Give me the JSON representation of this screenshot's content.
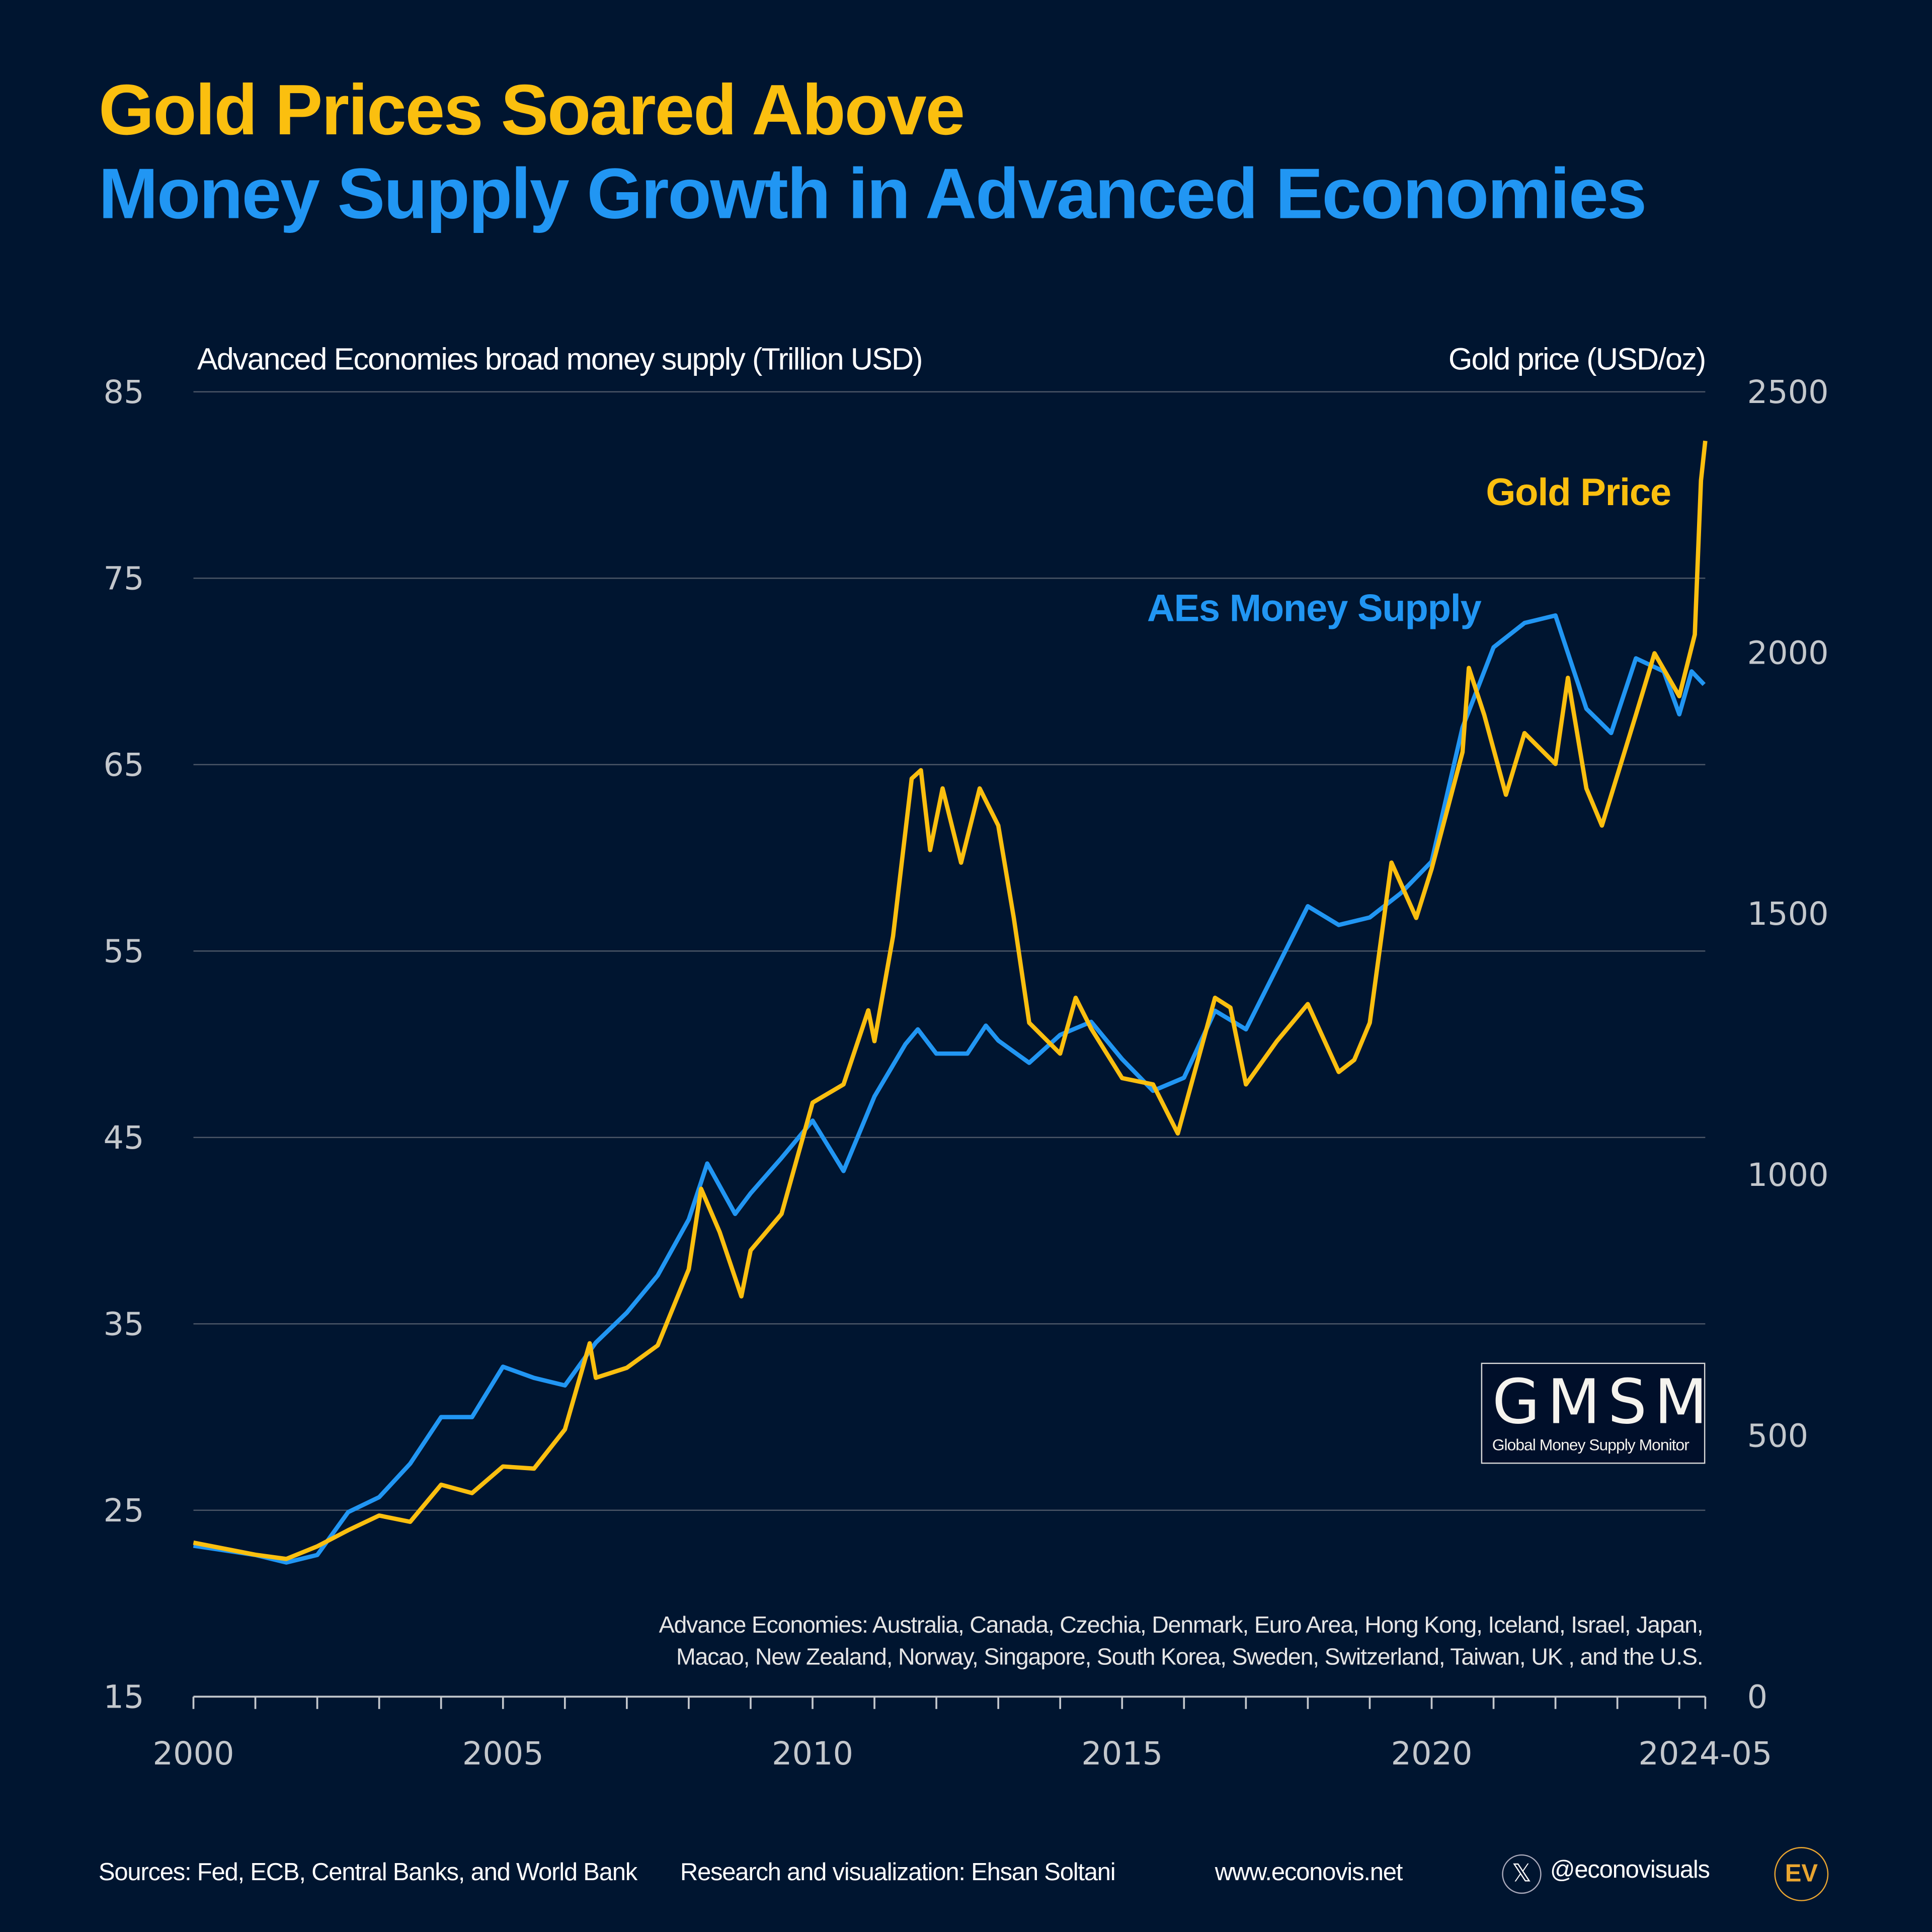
{
  "title": {
    "line1": "Gold Prices Soared Above",
    "line2": "Money Supply Growth in Advanced Economies"
  },
  "colors": {
    "background": "#001530",
    "gold": "#fbbf0f",
    "money_supply": "#2196f3",
    "grid": "#4a5566"
  },
  "chart_data": {
    "type": "line",
    "grid": true,
    "left_axis": {
      "label": "Advanced Economies broad money supply (Trillion USD)",
      "ylim": [
        15,
        85
      ],
      "ticks": [
        "85",
        "75",
        "65",
        "55",
        "45",
        "35",
        "25",
        "15"
      ]
    },
    "right_axis": {
      "label": "Gold price (USD/oz)",
      "ylim": [
        0,
        2500
      ],
      "ticks": [
        "2500",
        "2000",
        "1500",
        "1000",
        "500",
        "0"
      ]
    },
    "x_axis": {
      "xlim": [
        2000,
        2024.42
      ],
      "ticks": [
        "2000",
        "2005",
        "2010",
        "2015",
        "2020",
        "2024-05"
      ]
    },
    "series": [
      {
        "name": "AEs Money Supply",
        "axis": "left",
        "color": "#2196f3",
        "x": [
          2000,
          2001,
          2001.5,
          2002,
          2002.5,
          2003,
          2003.5,
          2004,
          2004.5,
          2005,
          2005.5,
          2006,
          2006.5,
          2007,
          2007.5,
          2008,
          2008.3,
          2008.75,
          2009,
          2009.5,
          2010,
          2010.5,
          2011,
          2011.5,
          2011.7,
          2012,
          2012.5,
          2012.8,
          2013,
          2013.5,
          2014,
          2014.5,
          2015,
          2015.5,
          2016,
          2016.5,
          2017,
          2017.5,
          2018,
          2018.5,
          2019,
          2019.5,
          2020,
          2020.5,
          2021,
          2021.5,
          2022,
          2022.5,
          2022.9,
          2023.3,
          2023.75,
          2024,
          2024.2,
          2024.4
        ],
        "y": [
          23.1,
          22.6,
          22.2,
          22.6,
          24.9,
          25.7,
          27.5,
          30.0,
          30.0,
          32.7,
          32.1,
          31.7,
          34.0,
          35.6,
          37.6,
          40.6,
          43.6,
          40.9,
          42.0,
          43.9,
          45.9,
          43.2,
          47.2,
          50.0,
          50.8,
          49.5,
          49.5,
          51.0,
          50.2,
          49.0,
          50.5,
          51.2,
          49.2,
          47.5,
          48.2,
          51.8,
          50.8,
          54.1,
          57.4,
          56.4,
          56.8,
          58.1,
          59.8,
          67.0,
          71.3,
          72.6,
          73.0,
          68.0,
          66.7,
          70.7,
          70.0,
          67.7,
          70.0,
          69.3
        ]
      },
      {
        "name": "Gold Price",
        "axis": "right",
        "color": "#fbbf0f",
        "x": [
          2000,
          2001,
          2001.5,
          2002,
          2002.5,
          2003,
          2003.5,
          2004,
          2004.5,
          2005,
          2005.5,
          2006,
          2006.4,
          2006.5,
          2007,
          2007.5,
          2008,
          2008.2,
          2008.5,
          2008.85,
          2009,
          2009.5,
          2010,
          2010.5,
          2010.9,
          2011,
          2011.3,
          2011.6,
          2011.75,
          2011.9,
          2012.1,
          2012.4,
          2012.7,
          2013,
          2013.25,
          2013.5,
          2014,
          2014.25,
          2014.5,
          2015,
          2015.5,
          2015.9,
          2016.5,
          2016.75,
          2017,
          2017.5,
          2018,
          2018.5,
          2018.75,
          2019,
          2019.35,
          2019.75,
          2020,
          2020.5,
          2020.6,
          2020.85,
          2021.2,
          2021.5,
          2022,
          2022.2,
          2022.5,
          2022.75,
          2023.3,
          2023.6,
          2024,
          2024.25,
          2024.35,
          2024.42
        ],
        "y": [
          295,
          272,
          264,
          288,
          319,
          347,
          335,
          406,
          390,
          441,
          437,
          512,
          677,
          611,
          630,
          673,
          819,
          973,
          890,
          767,
          855,
          925,
          1138,
          1173,
          1315,
          1256,
          1457,
          1759,
          1775,
          1622,
          1740,
          1598,
          1740,
          1669,
          1492,
          1291,
          1232,
          1339,
          1280,
          1185,
          1173,
          1079,
          1339,
          1320,
          1173,
          1256,
          1327,
          1197,
          1220,
          1291,
          1598,
          1492,
          1586,
          1810,
          1971,
          1881,
          1728,
          1846,
          1787,
          1952,
          1740,
          1669,
          1881,
          1999,
          1917,
          2035,
          2330,
          2406
        ]
      }
    ],
    "annotations": {
      "gold": "Gold Price",
      "money_supply": "AEs Money Supply"
    }
  },
  "note": {
    "line1": "Advance Economies: Australia, Canada, Czechia, Denmark, Euro Area, Hong Kong, Iceland, Israel, Japan,",
    "line2": "Macao, New Zealand, Norway, Singapore, South Korea, Sweden, Switzerland, Taiwan, UK , and the U.S."
  },
  "logo": {
    "big": "GMSM",
    "small": "Global Money Supply Monitor"
  },
  "footer": {
    "sources": "Sources: Fed, ECB, Central Banks, and World Bank",
    "credit": "Research and visualization: Ehsan Soltani",
    "website": "www.econovis.net",
    "handle": "@econovisuals",
    "x_icon": "x-logo-icon",
    "ev_logo": "EV"
  }
}
